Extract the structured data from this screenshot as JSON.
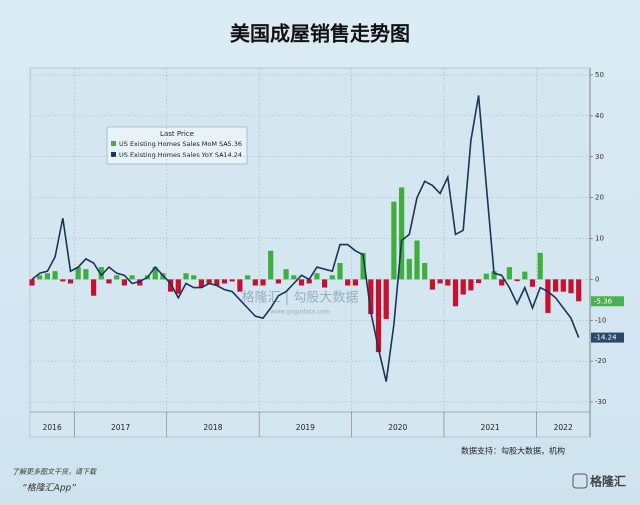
{
  "chart_data": {
    "type": "bar_line",
    "title": "美国成屋销售走势图",
    "categories": [
      "2016",
      "2016",
      "2016",
      "2016",
      "2016",
      "2016",
      "2017",
      "2017",
      "2017",
      "2017",
      "2017",
      "2017",
      "2017",
      "2017",
      "2017",
      "2017",
      "2017",
      "2017",
      "2018",
      "2018",
      "2018",
      "2018",
      "2018",
      "2018",
      "2018",
      "2018",
      "2018",
      "2018",
      "2018",
      "2018",
      "2019",
      "2019",
      "2019",
      "2019",
      "2019",
      "2019",
      "2019",
      "2019",
      "2019",
      "2019",
      "2019",
      "2019",
      "2020",
      "2020",
      "2020",
      "2020",
      "2020",
      "2020",
      "2020",
      "2020",
      "2020",
      "2020",
      "2020",
      "2020",
      "2021",
      "2021",
      "2021",
      "2021",
      "2021",
      "2021",
      "2021",
      "2021",
      "2021",
      "2021",
      "2021",
      "2021",
      "2022",
      "2022",
      "2022",
      "2022",
      "2022",
      "2022"
    ],
    "legend_title": "Last Price",
    "series": [
      {
        "name": "US Existing Homes Sales MoM SA",
        "kind": "bar",
        "color": "#3fae3f",
        "negative_color": "#c8102e",
        "last_value_label": "-5.36",
        "values": [
          -1.5,
          1,
          1.5,
          2,
          -0.5,
          -1,
          3,
          2.5,
          -4,
          3,
          -1,
          1,
          -1.5,
          1,
          -1.5,
          1,
          3,
          1.5,
          -3,
          -3.5,
          1.5,
          1,
          -2,
          -1,
          -1.5,
          -1,
          -0.5,
          -3,
          1,
          -1.5,
          -1.5,
          7,
          -1,
          2.5,
          1,
          -1.5,
          -1,
          1.5,
          -2,
          1,
          4,
          -1.5,
          -1.5,
          6.5,
          -8.5,
          -17.8,
          -9.7,
          19,
          22.5,
          5,
          9.5,
          4,
          -2.5,
          -1,
          -1.5,
          -6.6,
          -3.7,
          -2.7,
          -0.9,
          1.4,
          2,
          -1.5,
          3,
          -0.4,
          1.9,
          -1.8,
          6.5,
          -8.2,
          -3,
          -3,
          -3.4,
          -5.36
        ]
      },
      {
        "name": "US Existing Homes Sales YoY SA",
        "kind": "line",
        "color": "#1c3557",
        "last_value_label": "-14.24",
        "values": [
          0,
          1.5,
          2,
          5.5,
          15,
          2,
          3,
          5,
          4,
          1,
          3,
          1.5,
          1,
          -1,
          -0.5,
          0.5,
          3,
          1,
          -1,
          -4.5,
          -1,
          -2,
          -2,
          -1,
          -1.5,
          -2.5,
          -3,
          -5,
          -7,
          -9,
          -9.5,
          -7,
          -4,
          -3,
          -1,
          1,
          0,
          3,
          2.5,
          2,
          8.5,
          8.5,
          7,
          6,
          -8,
          -17,
          -25,
          -11,
          9.5,
          11,
          20,
          24,
          23,
          21,
          25,
          11,
          12,
          34,
          45,
          23,
          1.5,
          1,
          -2,
          -6,
          -2,
          -7,
          -2,
          -3,
          -4.5,
          -7,
          -9.5,
          -14.24
        ]
      }
    ],
    "ylim": [
      -30,
      50
    ],
    "yticks": [
      50,
      40,
      30,
      20,
      10,
      0,
      -10,
      -20,
      -30
    ],
    "grid": true,
    "source": "数据支持：勾股大数据，机构",
    "watermark": "格隆汇 | 勾股大数据",
    "watermark_url": "www.gogudata.com"
  },
  "footer": {
    "line1": "了解更多图文干货，请下载",
    "line2": "“格隆汇App”",
    "logo": "格隆汇"
  }
}
